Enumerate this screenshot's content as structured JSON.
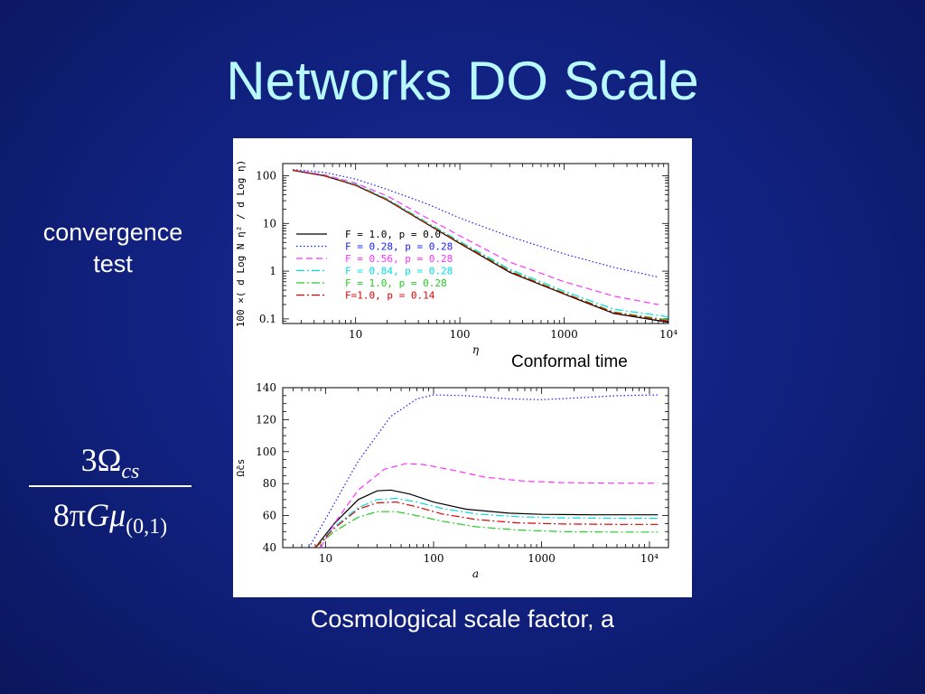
{
  "slide": {
    "title": "Networks DO Scale",
    "side_label_1": "convergence",
    "side_label_2": "test",
    "formula": {
      "num_coef": "3",
      "num_sym": "Ω",
      "num_sub": "cs",
      "den_coef": "8π",
      "den_G": "G",
      "den_mu": "μ",
      "den_sub": "(0,1)"
    },
    "caption_top_plot": "Conformal time",
    "caption_bottom": "Cosmological scale factor, a"
  },
  "chart_data": [
    {
      "type": "line",
      "xscale": "log",
      "yscale": "log",
      "xlim": [
        2,
        10000
      ],
      "ylim": [
        0.08,
        180
      ],
      "xlabel": "η",
      "ylabel": "100 ×( d Log N η² / d Log η)",
      "xticks": [
        "10",
        "100",
        "1000",
        "10⁴"
      ],
      "yticks": [
        "0.1",
        "1",
        "10",
        "100"
      ],
      "legend_position": "left",
      "series": [
        {
          "name": "F = 1.0, p = 0.0",
          "color": "#000000",
          "dash": "solid",
          "x": [
            2.5,
            5,
            10,
            20,
            50,
            100,
            300,
            1000,
            3000,
            10000
          ],
          "y": [
            130,
            100,
            63,
            31,
            9.3,
            3.8,
            0.95,
            0.33,
            0.13,
            0.085
          ]
        },
        {
          "name": "F = 0.28, p = 0.28",
          "color": "#1a1aff",
          "dash": "dotted",
          "x": [
            2.5,
            5,
            10,
            20,
            50,
            100,
            300,
            1000,
            3000,
            8000
          ],
          "y": [
            135,
            118,
            85,
            52,
            25,
            13,
            5.3,
            2.3,
            1.2,
            0.75
          ]
        },
        {
          "name": "F = 0.56, p = 0.28",
          "color": "#ff33ff",
          "dash": "dashed",
          "x": [
            2.5,
            5,
            10,
            20,
            50,
            100,
            300,
            1000,
            3000,
            8000
          ],
          "y": [
            132,
            105,
            70,
            38,
            12.5,
            5.5,
            1.55,
            0.6,
            0.3,
            0.2
          ]
        },
        {
          "name": "F = 0.84, p = 0.28",
          "color": "#00dddd",
          "dash": "dashdot",
          "x": [
            2.5,
            5,
            10,
            20,
            50,
            100,
            300,
            1000,
            3000,
            10000
          ],
          "y": [
            131,
            102,
            66,
            33,
            10,
            4.2,
            1.1,
            0.38,
            0.16,
            0.11
          ]
        },
        {
          "name": "F = 1.0, p = 0.28",
          "color": "#22cc22",
          "dash": "dashdot",
          "x": [
            2.5,
            5,
            10,
            20,
            50,
            100,
            300,
            1000,
            3000,
            10000
          ],
          "y": [
            130,
            101,
            64,
            32,
            9.6,
            4.0,
            1.02,
            0.35,
            0.14,
            0.095
          ]
        },
        {
          "name": "F=1.0, p = 0.14",
          "color": "#dd0000",
          "dash": "dashdot",
          "x": [
            2.5,
            5,
            10,
            20,
            50,
            100,
            300,
            1000,
            3000,
            10000
          ],
          "y": [
            130,
            100,
            63,
            31,
            9.4,
            3.9,
            0.98,
            0.34,
            0.135,
            0.09
          ]
        }
      ]
    },
    {
      "type": "line",
      "xscale": "log",
      "yscale": "linear",
      "xlim": [
        4,
        15000
      ],
      "ylim": [
        40,
        140
      ],
      "xlabel": "a",
      "ylabel": "Ω̄cs",
      "xticks": [
        "10",
        "100",
        "1000",
        "10⁴"
      ],
      "yticks": [
        "40",
        "60",
        "80",
        "100",
        "120",
        "140"
      ],
      "series": [
        {
          "name": "F = 1.0, p = 0.0",
          "color": "#000000",
          "dash": "solid",
          "x": [
            8,
            12,
            20,
            30,
            40,
            60,
            100,
            200,
            500,
            1000,
            3000,
            12000
          ],
          "y": [
            40,
            55,
            70,
            75.5,
            76,
            73.5,
            68.5,
            64,
            61.5,
            60.8,
            60.5,
            60.5
          ]
        },
        {
          "name": "F = 0.28, p = 0.28",
          "color": "#1a1aff",
          "dash": "dotted",
          "x": [
            7,
            10,
            20,
            40,
            70,
            100,
            200,
            500,
            1000,
            2000,
            5000,
            12000
          ],
          "y": [
            40,
            58,
            94,
            122,
            133,
            135.5,
            135,
            133,
            132.5,
            133.5,
            135,
            135.5
          ]
        },
        {
          "name": "F = 0.56, p = 0.28",
          "color": "#ff33ff",
          "dash": "dashed",
          "x": [
            9,
            12,
            20,
            35,
            55,
            80,
            150,
            300,
            700,
            1500,
            5000,
            12000
          ],
          "y": [
            40,
            55,
            76,
            89,
            92.5,
            92,
            88.5,
            84,
            81.5,
            80.7,
            80.3,
            80.3
          ]
        },
        {
          "name": "F = 0.84, p = 0.28",
          "color": "#00dddd",
          "dash": "dashdot",
          "x": [
            8,
            12,
            20,
            30,
            45,
            70,
            120,
            250,
            600,
            1500,
            5000,
            12000
          ],
          "y": [
            40,
            53,
            65,
            70,
            70.8,
            68.5,
            64.5,
            61,
            59.3,
            58.6,
            58.3,
            58.3
          ]
        },
        {
          "name": "F = 1.0, p = 0.28",
          "color": "#22cc22",
          "dash": "dashdot",
          "x": [
            8,
            12,
            20,
            30,
            45,
            70,
            120,
            250,
            600,
            1500,
            5000,
            12000
          ],
          "y": [
            40,
            50,
            59,
            62.5,
            62.5,
            60,
            56.5,
            53,
            51,
            50,
            49.7,
            49.7
          ]
        },
        {
          "name": "F=1.0, p = 0.14",
          "color": "#dd0000",
          "dash": "dashdot",
          "x": [
            8,
            12,
            20,
            30,
            45,
            70,
            120,
            250,
            600,
            1500,
            5000,
            12000
          ],
          "y": [
            40,
            52,
            64,
            68,
            68.5,
            65.5,
            61,
            57.5,
            55.5,
            54.8,
            54.5,
            54.5
          ]
        }
      ]
    }
  ]
}
